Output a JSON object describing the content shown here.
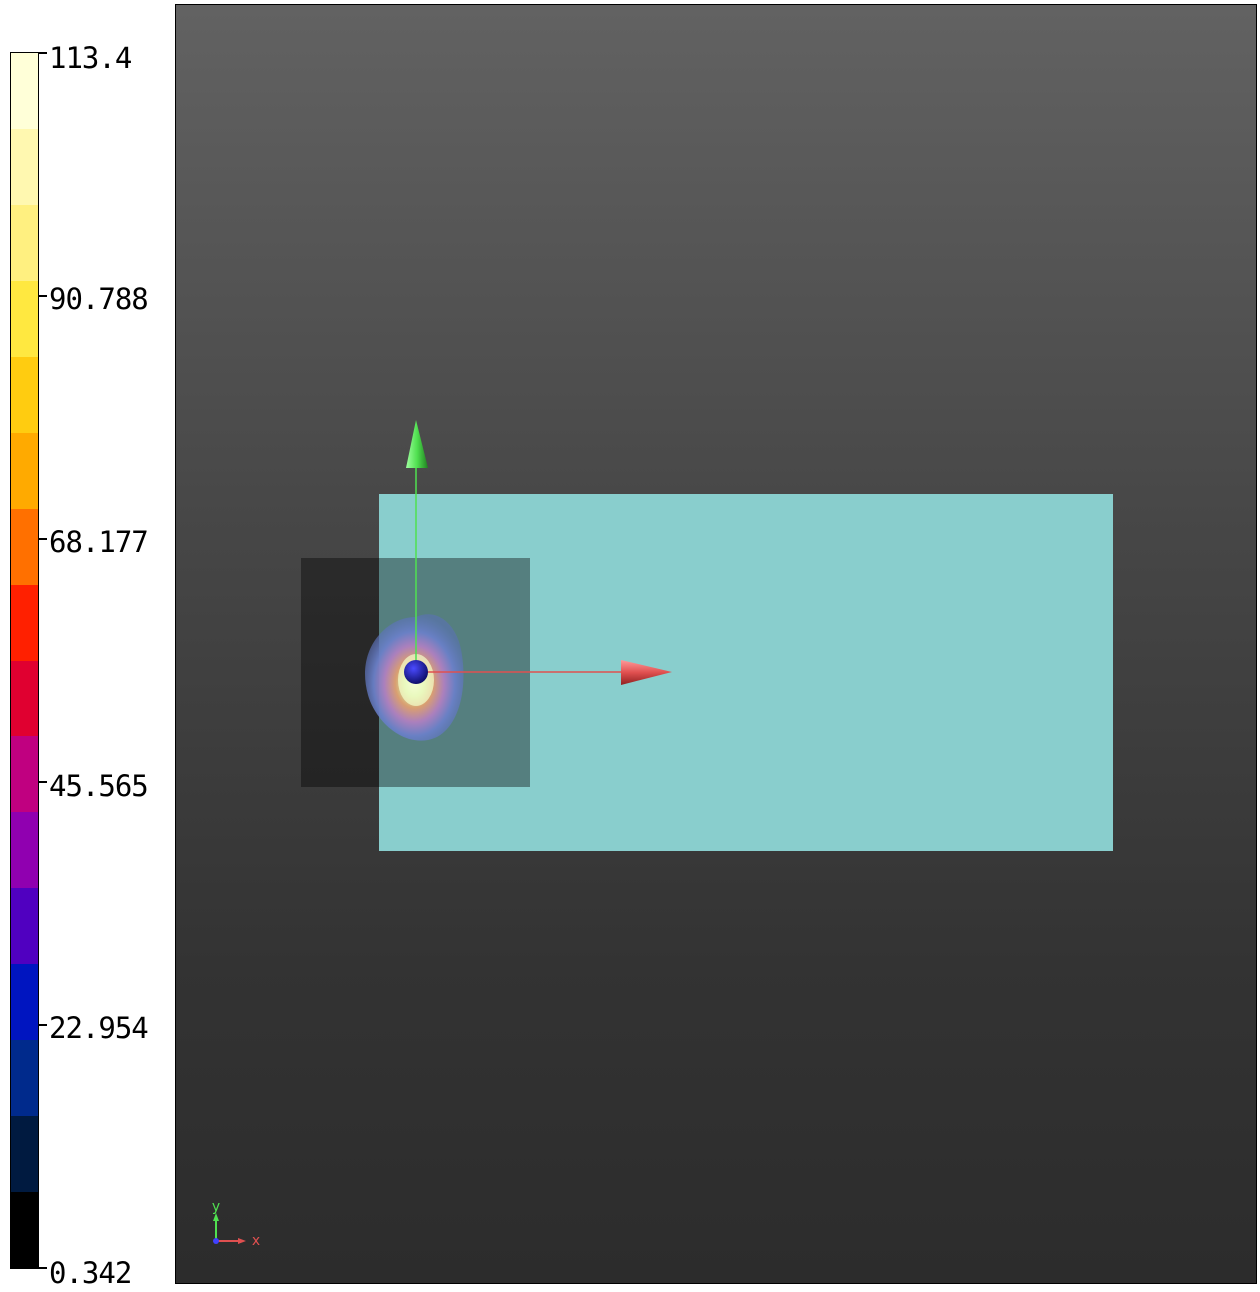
{
  "colorbar": {
    "ticks": [
      "113.4",
      "90.788",
      "68.177",
      "45.565",
      "22.954",
      "0.342"
    ],
    "colors": [
      "#000000",
      "#001a40",
      "#002a8c",
      "#0015c0",
      "#5000c0",
      "#9000b0",
      "#c00080",
      "#e00030",
      "#ff2000",
      "#ff7000",
      "#ffaa00",
      "#ffcc10",
      "#ffe840",
      "#fff080",
      "#fff8b0",
      "#ffffd8"
    ]
  },
  "scene": {
    "background_top": "#626262",
    "background_bottom": "#2c2c2c",
    "plate_color": "#89cecd",
    "inner_square_color": "#000000",
    "x_arrow_color": "#e05050",
    "y_arrow_color": "#50e050"
  },
  "orientation": {
    "x_label": "x",
    "y_label": "y"
  }
}
